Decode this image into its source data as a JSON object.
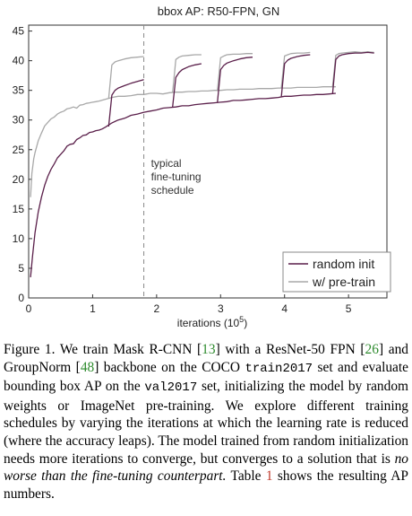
{
  "chart_data": {
    "type": "line",
    "title": "bbox AP: R50-FPN, GN",
    "xlabel_main": "iterations (10",
    "xlabel_sup": "5",
    "xlabel_tail": ")",
    "xlim": [
      0,
      5.6
    ],
    "ylim": [
      0,
      46
    ],
    "xticks": [
      0,
      1,
      2,
      3,
      4,
      5
    ],
    "yticks": [
      0,
      5,
      10,
      15,
      20,
      25,
      30,
      35,
      40,
      45
    ],
    "annotation": {
      "lines": [
        "typical",
        "fine-tuning",
        "schedule"
      ],
      "x": 1.8
    },
    "legend": {
      "position": "bottom-right",
      "entries": [
        "random init",
        "w/ pre-train"
      ]
    },
    "colors": {
      "random": "#5a1f4a",
      "pretrain": "#a8a8a8",
      "axis": "#333333",
      "dash": "#888888"
    },
    "series": [
      {
        "name": "random init",
        "base": {
          "x": [
            0.03,
            0.06,
            0.1,
            0.15,
            0.2,
            0.25,
            0.3,
            0.35,
            0.4,
            0.45,
            0.5,
            0.55,
            0.6,
            0.65,
            0.7,
            0.75,
            0.8,
            0.85,
            0.9,
            0.95,
            1.0,
            1.05,
            1.1,
            1.15,
            1.2,
            1.3,
            1.4,
            1.5,
            1.6,
            1.7,
            1.8,
            1.9,
            2.0,
            2.1,
            2.2,
            2.3,
            2.4,
            2.5,
            2.6,
            2.7,
            2.8,
            2.9,
            3.0,
            3.1,
            3.2,
            3.3,
            3.4,
            3.5,
            3.6,
            3.7,
            3.8,
            3.9,
            4.0,
            4.1,
            4.2,
            4.3,
            4.4,
            4.5,
            4.6,
            4.7,
            4.8
          ],
          "y": [
            3.5,
            7.0,
            11.0,
            14.5,
            17.0,
            19.0,
            20.5,
            21.7,
            22.6,
            23.6,
            24.2,
            24.8,
            25.6,
            25.9,
            26.0,
            26.7,
            27.0,
            27.4,
            27.5,
            27.9,
            28.0,
            28.2,
            28.3,
            28.5,
            28.8,
            29.5,
            30.0,
            30.3,
            30.8,
            31.0,
            31.3,
            31.5,
            31.7,
            32.0,
            32.1,
            32.2,
            32.4,
            32.4,
            32.6,
            32.7,
            32.8,
            32.9,
            33.0,
            33.1,
            33.3,
            33.3,
            33.4,
            33.5,
            33.6,
            33.6,
            33.7,
            33.8,
            34.0,
            34.0,
            34.1,
            34.2,
            34.2,
            34.3,
            34.3,
            34.4,
            34.5
          ]
        },
        "branches": [
          {
            "x": [
              1.25,
              1.3,
              1.35,
              1.4,
              1.5,
              1.6,
              1.7,
              1.8
            ],
            "y": [
              28.9,
              34.2,
              35.0,
              35.4,
              35.8,
              36.2,
              36.5,
              36.8
            ]
          },
          {
            "x": [
              2.25,
              2.3,
              2.35,
              2.4,
              2.5,
              2.6,
              2.7
            ],
            "y": [
              32.2,
              37.2,
              38.0,
              38.5,
              39.0,
              39.3,
              39.5
            ]
          },
          {
            "x": [
              2.95,
              3.0,
              3.05,
              3.1,
              3.2,
              3.3,
              3.4,
              3.5
            ],
            "y": [
              32.9,
              38.5,
              39.2,
              39.6,
              40.0,
              40.3,
              40.5,
              40.6
            ]
          },
          {
            "x": [
              3.95,
              4.0,
              4.05,
              4.1,
              4.2,
              4.3,
              4.4
            ],
            "y": [
              33.9,
              39.5,
              40.1,
              40.4,
              40.7,
              40.9,
              41.0
            ]
          },
          {
            "x": [
              4.75,
              4.8,
              4.85,
              4.9,
              5.0,
              5.1,
              5.2,
              5.3,
              5.4
            ],
            "y": [
              34.4,
              40.2,
              40.8,
              41.0,
              41.2,
              41.3,
              41.3,
              41.4,
              41.3
            ]
          }
        ]
      },
      {
        "name": "w/ pre-train",
        "base": {
          "x": [
            0.03,
            0.05,
            0.08,
            0.1,
            0.15,
            0.2,
            0.25,
            0.3,
            0.35,
            0.4,
            0.45,
            0.5,
            0.55,
            0.6,
            0.65,
            0.7,
            0.75,
            0.8,
            0.85,
            0.9,
            0.95,
            1.0,
            1.05,
            1.1,
            1.2,
            1.3,
            1.4,
            1.5,
            1.6,
            1.7,
            1.8,
            1.9,
            2.0,
            2.1,
            2.2,
            2.3,
            2.4,
            2.5,
            2.6,
            2.7,
            2.8,
            2.9,
            3.0,
            3.1,
            3.2,
            3.3,
            3.4,
            3.5,
            3.6,
            3.7,
            3.8,
            3.9,
            4.0,
            4.1,
            4.2,
            4.3,
            4.4,
            4.5,
            4.6,
            4.7,
            4.8
          ],
          "y": [
            17.0,
            21.0,
            23.5,
            24.5,
            26.5,
            27.8,
            29.0,
            29.6,
            30.2,
            30.5,
            31.0,
            31.3,
            31.5,
            31.9,
            32.0,
            32.2,
            32.0,
            32.5,
            32.6,
            32.8,
            32.9,
            33.0,
            33.1,
            33.2,
            33.5,
            33.8,
            34.0,
            34.0,
            34.1,
            34.3,
            34.3,
            34.5,
            34.5,
            34.4,
            34.6,
            34.7,
            34.7,
            34.8,
            34.8,
            34.9,
            34.9,
            35.0,
            35.0,
            35.1,
            35.1,
            35.2,
            35.2,
            35.2,
            35.3,
            35.3,
            35.3,
            35.4,
            35.4,
            35.4,
            35.5,
            35.5,
            35.5,
            35.5,
            35.6,
            35.6,
            35.6
          ]
        },
        "branches": [
          {
            "x": [
              1.25,
              1.3,
              1.35,
              1.4,
              1.5,
              1.6,
              1.7,
              1.8
            ],
            "y": [
              33.6,
              39.3,
              39.8,
              40.0,
              40.3,
              40.5,
              40.6,
              40.7
            ]
          },
          {
            "x": [
              2.25,
              2.3,
              2.35,
              2.4,
              2.5,
              2.6,
              2.7
            ],
            "y": [
              34.6,
              40.2,
              40.6,
              40.8,
              40.9,
              41.0,
              41.0
            ]
          },
          {
            "x": [
              2.95,
              3.0,
              3.05,
              3.1,
              3.2,
              3.3,
              3.4,
              3.5
            ],
            "y": [
              34.9,
              40.5,
              40.8,
              41.0,
              41.1,
              41.1,
              41.2,
              41.2
            ]
          },
          {
            "x": [
              3.95,
              4.0,
              4.05,
              4.1,
              4.2,
              4.3,
              4.4
            ],
            "y": [
              35.4,
              40.8,
              41.0,
              41.2,
              41.3,
              41.3,
              41.4
            ]
          },
          {
            "x": [
              4.75,
              4.8,
              4.85,
              4.9,
              5.0,
              5.1,
              5.2,
              5.3,
              5.4
            ],
            "y": [
              35.6,
              40.9,
              41.2,
              41.3,
              41.4,
              41.5,
              41.4,
              41.5,
              41.4
            ]
          }
        ]
      }
    ]
  },
  "caption": {
    "p1": "Figure 1. We train Mask R-CNN [",
    "c1": "13",
    "p2": "] with a ResNet-50 FPN [",
    "c2": "26",
    "p3": "] and GroupNorm [",
    "c3": "48",
    "p4": "] backbone on the COCO ",
    "m1": "train2017",
    "p5": " set and evaluate bounding box AP on the ",
    "m2": "val2017",
    "p6": " set, initializing the model by random weights or ImageNet pre-training. We explore different training schedules by varying the iterations at which the learning rate is reduced (where the accuracy leaps). The model trained from random initialization needs more iterations to converge, but converges to a solution that is ",
    "e1": "no worse than the fine-tuning counterpart.",
    "p7": " Table ",
    "t1": "1",
    "p8": " shows the resulting AP numbers."
  }
}
